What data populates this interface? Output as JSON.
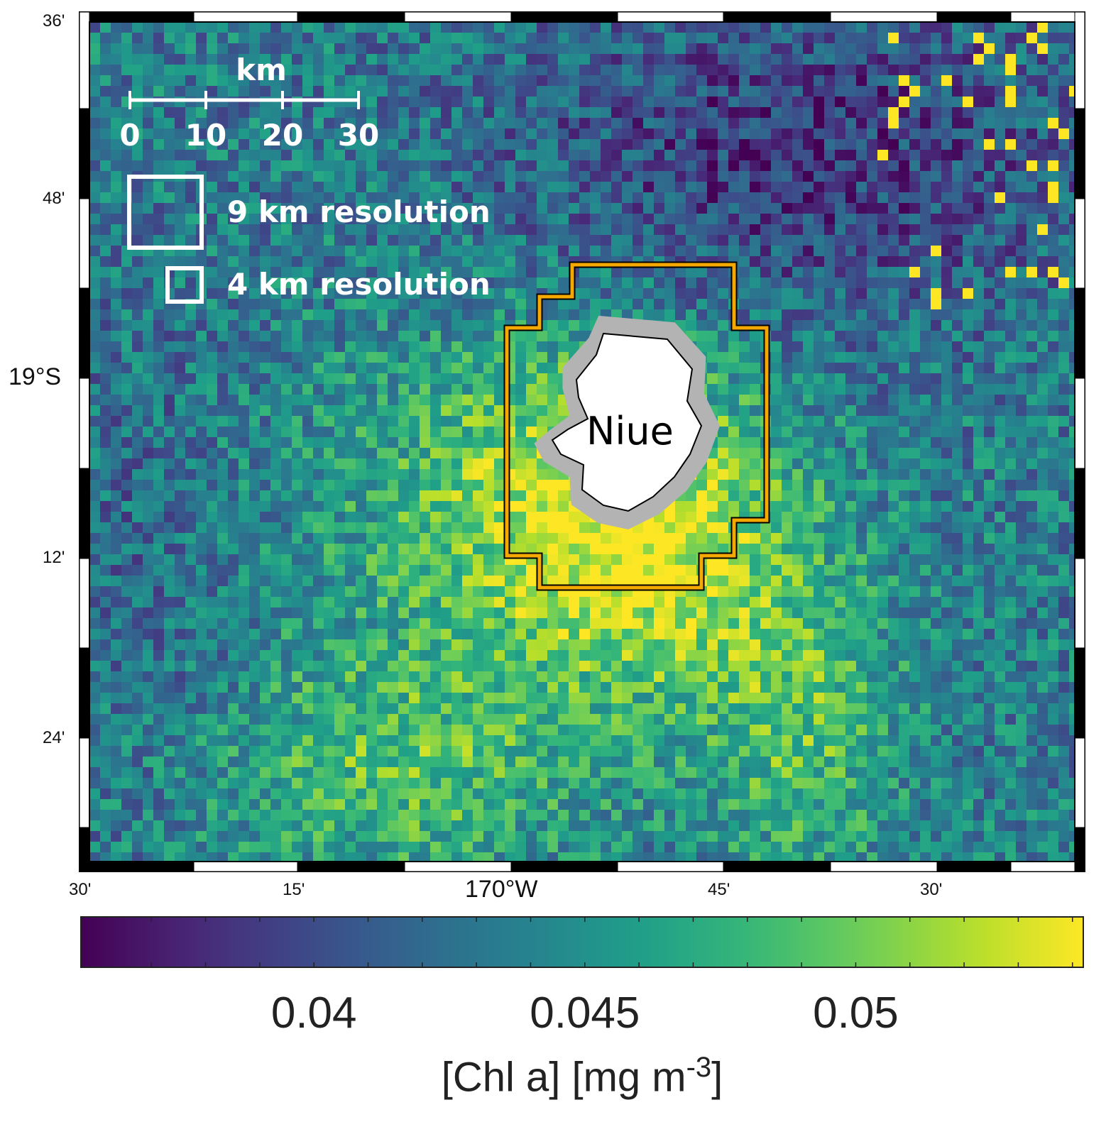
{
  "map": {
    "island_name": "Niue",
    "lat_labels": [
      {
        "text": "36'",
        "major": false
      },
      {
        "text": "48'",
        "major": false
      },
      {
        "text": "19°S",
        "major": true
      },
      {
        "text": "12'",
        "major": false
      },
      {
        "text": "24'",
        "major": false
      }
    ],
    "lon_labels": [
      {
        "text": "30'",
        "major": false
      },
      {
        "text": "15'",
        "major": false
      },
      {
        "text": "170°W",
        "major": true
      },
      {
        "text": "45'",
        "major": false
      },
      {
        "text": "30'",
        "major": false
      }
    ],
    "scale_bar": {
      "unit": "km",
      "ticks": [
        "0",
        "10",
        "20",
        "30"
      ]
    },
    "legend": {
      "large_box_label": "9 km resolution",
      "small_box_label": "4 km resolution"
    },
    "colors": {
      "outline_box": "#f5a800",
      "island_fill": "#ffffff",
      "coastal_mask": "#b3b3b3"
    }
  },
  "colorbar": {
    "colormap": "viridis",
    "tick_labels": [
      "0.04",
      "0.045",
      "0.05"
    ],
    "tick_values": [
      0.04,
      0.045,
      0.05
    ],
    "range": [
      0.0357,
      0.0542
    ],
    "title": "[Chl a] [mg m",
    "title_sup": "-3",
    "title_end": "]"
  }
}
